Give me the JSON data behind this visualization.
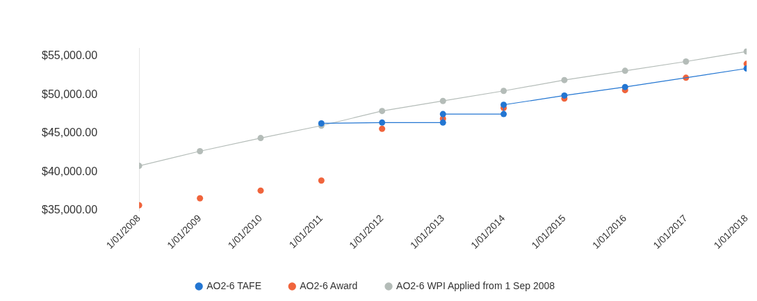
{
  "chart_data": {
    "type": "line",
    "legend": "bottom",
    "marker": "circle",
    "grid": false,
    "xlim": [
      "2008-01-01",
      "2018-01-01"
    ],
    "xticks": [
      {
        "value": "2008-01-01",
        "label": "1/01/2008"
      },
      {
        "value": "2009-01-01",
        "label": "1/01/2009"
      },
      {
        "value": "2010-01-01",
        "label": "1/01/2010"
      },
      {
        "value": "2011-01-01",
        "label": "1/01/2011"
      },
      {
        "value": "2012-01-01",
        "label": "1/01/2012"
      },
      {
        "value": "2013-01-01",
        "label": "1/01/2013"
      },
      {
        "value": "2014-01-01",
        "label": "1/01/2014"
      },
      {
        "value": "2015-01-01",
        "label": "1/01/2015"
      },
      {
        "value": "2016-01-01",
        "label": "1/01/2016"
      },
      {
        "value": "2017-01-01",
        "label": "1/01/2017"
      },
      {
        "value": "2018-01-01",
        "label": "1/01/2018"
      }
    ],
    "ylim": [
      35000,
      56000
    ],
    "yticks": [
      {
        "value": 35000,
        "label": "$35,000.00"
      },
      {
        "value": 40000,
        "label": "$40,000.00"
      },
      {
        "value": 45000,
        "label": "$45,000.00"
      },
      {
        "value": 50000,
        "label": "$50,000.00"
      },
      {
        "value": 55000,
        "label": "$55,000.00"
      }
    ],
    "series": [
      {
        "name": "AO2-6 TAFE",
        "color": "#2376d2",
        "x": [
          "2011-01-01",
          "2012-01-01",
          "2013-01-01",
          "2013-01-01",
          "2014-01-01",
          "2014-01-01",
          "2015-01-01",
          "2016-01-01",
          "2018-01-01"
        ],
        "values": [
          46300,
          46400,
          46400,
          47500,
          47500,
          48700,
          49900,
          51000,
          53400
        ]
      },
      {
        "name": "AO2-6 Award",
        "type": "scatter",
        "color": "#f0643c",
        "x": [
          "2008-01-01",
          "2009-01-01",
          "2010-01-01",
          "2011-01-01",
          "2012-01-01",
          "2013-01-01",
          "2014-01-01",
          "2015-01-01",
          "2016-01-01",
          "2017-01-01",
          "2018-01-01"
        ],
        "values": [
          35700,
          36600,
          37600,
          38900,
          45600,
          46900,
          48300,
          49500,
          50600,
          52200,
          54000
        ]
      },
      {
        "name": "AO2-6 WPI Applied from 1 Sep 2008",
        "color": "#b4bcb8",
        "x": [
          "2008-01-01",
          "2009-01-01",
          "2010-01-01",
          "2011-01-01",
          "2012-01-01",
          "2013-01-01",
          "2014-01-01",
          "2015-01-01",
          "2016-01-01",
          "2017-01-01",
          "2018-01-01"
        ],
        "values": [
          40800,
          42700,
          44400,
          46000,
          47900,
          49200,
          50500,
          51900,
          53100,
          54300,
          55600
        ]
      }
    ]
  }
}
